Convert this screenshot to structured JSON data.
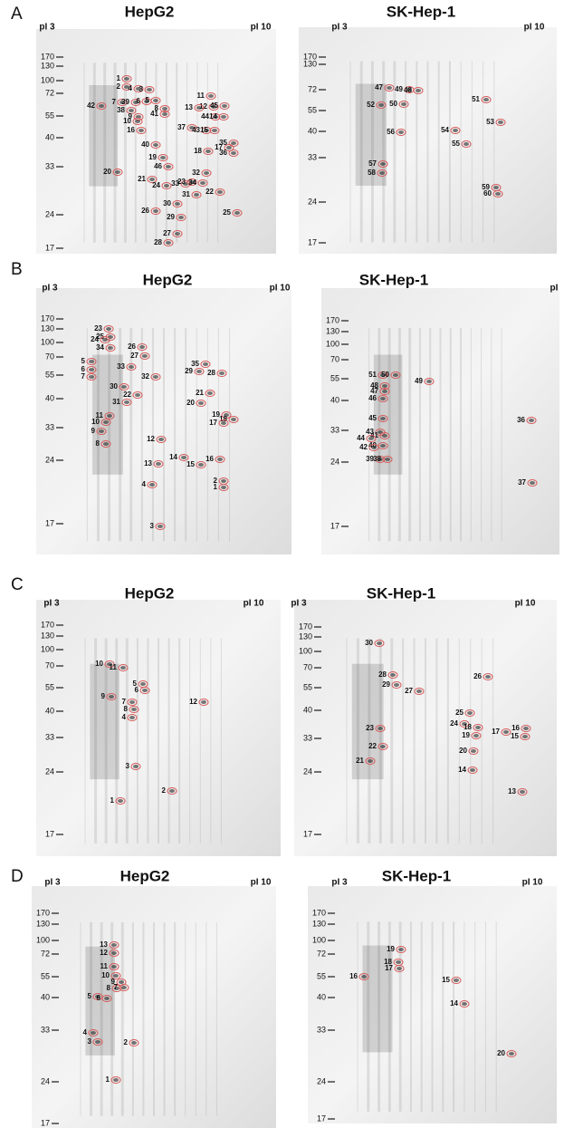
{
  "panels": [
    {
      "letter": "A",
      "gels": [
        {
          "title": "HepG2",
          "pi": [
            "pI 3",
            "pI 10"
          ],
          "mw": [
            170,
            130,
            100,
            72,
            55,
            40,
            33,
            24,
            17
          ],
          "spots": [
            "1",
            "2",
            "4",
            "3",
            "7",
            "39",
            "6",
            "5",
            "42",
            "38",
            "8",
            "41",
            "9",
            "10",
            "16",
            "11",
            "12",
            "45",
            "13",
            "44",
            "14",
            "37",
            "43",
            "15",
            "17",
            "35",
            "36",
            "18",
            "40",
            "19",
            "46",
            "20",
            "21",
            "24",
            "33",
            "23",
            "34",
            "31",
            "32",
            "22",
            "30",
            "26",
            "29",
            "25",
            "27",
            "28"
          ]
        },
        {
          "title": "SK-Hep-1",
          "pi": [
            "pI 3",
            "pI 10"
          ],
          "mw": [
            170,
            130,
            72,
            55,
            40,
            33,
            24,
            17
          ],
          "spots": [
            "47",
            "49",
            "48",
            "51",
            "52",
            "50",
            "53",
            "54",
            "56",
            "55",
            "57",
            "58",
            "59",
            "60"
          ]
        }
      ]
    },
    {
      "letter": "B",
      "gels": [
        {
          "title": "HepG2",
          "pi": [
            "pI 3",
            "pI 10"
          ],
          "mw": [
            170,
            130,
            100,
            70,
            55,
            40,
            33,
            24,
            17
          ],
          "spots": [
            "23",
            "25",
            "24",
            "34",
            "26",
            "27",
            "5",
            "6",
            "7",
            "33",
            "32",
            "35",
            "29",
            "28",
            "30",
            "22",
            "31",
            "21",
            "20",
            "11",
            "10",
            "19",
            "18",
            "17",
            "9",
            "12",
            "8",
            "14",
            "16",
            "13",
            "15",
            "2",
            "1",
            "4",
            "3"
          ]
        },
        {
          "title": "SK-Hep-1",
          "pi": [
            "pI"
          ],
          "mw": [
            170,
            130,
            100,
            70,
            55,
            40,
            33,
            24,
            17
          ],
          "spots": [
            "51",
            "50",
            "49",
            "48",
            "47",
            "46",
            "45",
            "43",
            "41",
            "44",
            "40",
            "42",
            "39",
            "38",
            "36",
            "37"
          ]
        }
      ]
    },
    {
      "letter": "C",
      "gels": [
        {
          "title": "HepG2",
          "pi": [
            "pI 3",
            "pI 10"
          ],
          "mw": [
            170,
            130,
            100,
            70,
            55,
            40,
            33,
            24,
            17
          ],
          "spots": [
            "10",
            "11",
            "5",
            "6",
            "9",
            "7",
            "8",
            "4",
            "12",
            "3",
            "2",
            "1"
          ]
        },
        {
          "title": "SK-Hep-1",
          "pi": [
            "pI 3",
            "pI 10"
          ],
          "mw": [
            170,
            130,
            100,
            70,
            55,
            40,
            33,
            24,
            17
          ],
          "spots": [
            "30",
            "28",
            "29",
            "27",
            "26",
            "25",
            "24",
            "18",
            "19",
            "23",
            "16",
            "17",
            "15",
            "22",
            "20",
            "21",
            "14",
            "13"
          ]
        }
      ]
    },
    {
      "letter": "D",
      "gels": [
        {
          "title": "HepG2",
          "pi": [
            "pI 3",
            "pI 10"
          ],
          "mw": [
            170,
            130,
            100,
            72,
            55,
            40,
            33,
            24,
            17
          ],
          "spots": [
            "13",
            "12",
            "11",
            "10",
            "9",
            "8",
            "7",
            "5",
            "6",
            "4",
            "3",
            "2",
            "1"
          ]
        },
        {
          "title": "SK-Hep-1",
          "pi": [
            "pI 3",
            "pI 10"
          ],
          "mw": [
            170,
            130,
            100,
            72,
            55,
            40,
            33,
            24,
            17
          ],
          "spots": [
            "19",
            "18",
            "17",
            "16",
            "15",
            "14",
            "20"
          ]
        }
      ]
    }
  ]
}
